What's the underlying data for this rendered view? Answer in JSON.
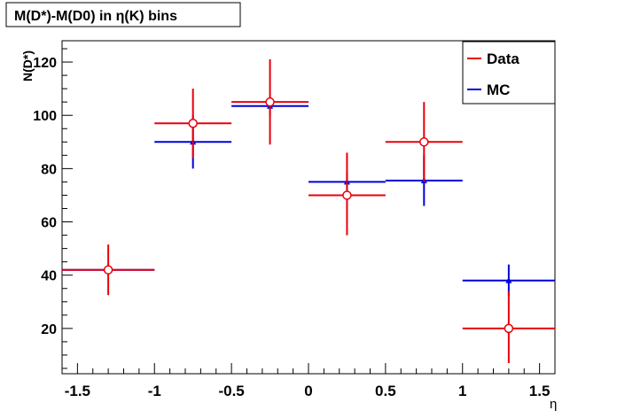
{
  "chart_data": {
    "type": "scatter",
    "title": "M(D*)-M(D0) in η(K) bins",
    "xlabel": "η",
    "ylabel": "N(D*)",
    "xlim": [
      -1.6,
      1.6
    ],
    "ylim": [
      3,
      128
    ],
    "x_ticks": [
      "-1.5",
      "-1",
      "-0.5",
      "0",
      "0.5",
      "1",
      "1.5"
    ],
    "y_ticks": [
      "20",
      "40",
      "60",
      "80",
      "100",
      "120"
    ],
    "grid": false,
    "legend_position": "top-right",
    "series": [
      {
        "name": "Data",
        "color": "#e8000b",
        "marker": "open-circle",
        "points": [
          {
            "x": -1.3,
            "y": 42,
            "x_low": -1.6,
            "x_high": -1.0,
            "y_low": 32.5,
            "y_high": 51.5
          },
          {
            "x": -0.75,
            "y": 97,
            "x_low": -1.0,
            "x_high": -0.5,
            "y_low": 84,
            "y_high": 110
          },
          {
            "x": -0.25,
            "y": 105,
            "x_low": -0.5,
            "x_high": 0.0,
            "y_low": 89,
            "y_high": 121
          },
          {
            "x": 0.25,
            "y": 70,
            "x_low": 0.0,
            "x_high": 0.5,
            "y_low": 55,
            "y_high": 86
          },
          {
            "x": 0.75,
            "y": 90,
            "x_low": 0.5,
            "x_high": 1.0,
            "y_low": 75,
            "y_high": 105
          },
          {
            "x": 1.3,
            "y": 20,
            "x_low": 1.0,
            "x_high": 1.6,
            "y_low": 7,
            "y_high": 34
          }
        ]
      },
      {
        "name": "MC",
        "color": "#0000dd",
        "marker": "filled-triangle",
        "points": [
          {
            "x": -1.3,
            "y": 42,
            "x_low": -1.6,
            "x_high": -1.0,
            "y_low": 40,
            "y_high": 44
          },
          {
            "x": -0.75,
            "y": 90,
            "x_low": -1.0,
            "x_high": -0.5,
            "y_low": 80,
            "y_high": 100
          },
          {
            "x": -0.25,
            "y": 103.5,
            "x_low": -0.5,
            "x_high": 0.0,
            "y_low": 100,
            "y_high": 107
          },
          {
            "x": 0.25,
            "y": 75,
            "x_low": 0.0,
            "x_high": 0.5,
            "y_low": 71,
            "y_high": 79
          },
          {
            "x": 0.75,
            "y": 75.5,
            "x_low": 0.5,
            "x_high": 1.0,
            "y_low": 66,
            "y_high": 85
          },
          {
            "x": 1.3,
            "y": 38,
            "x_low": 1.0,
            "x_high": 1.6,
            "y_low": 32,
            "y_high": 44
          }
        ]
      }
    ]
  }
}
